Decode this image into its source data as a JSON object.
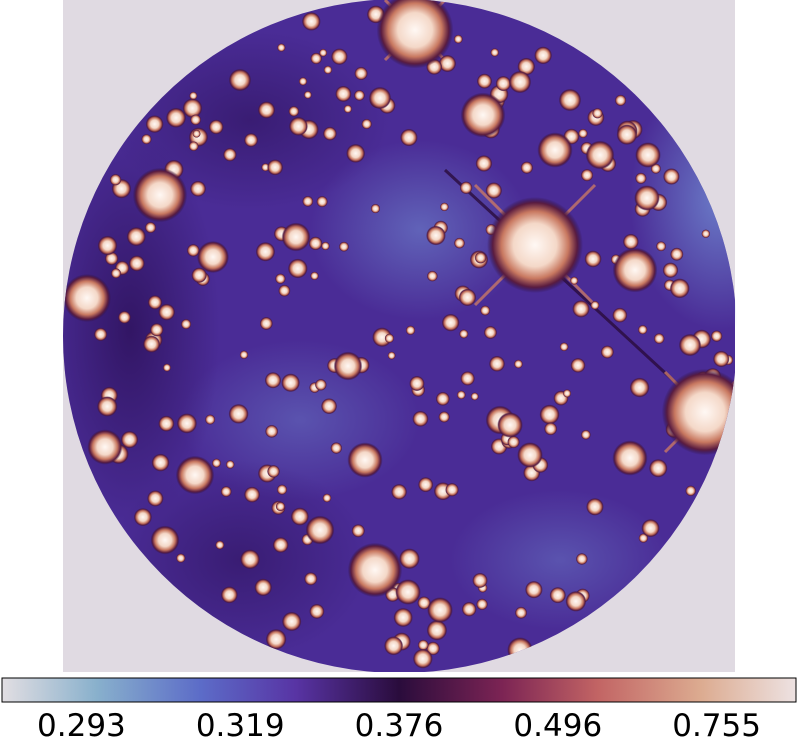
{
  "colorbar": {
    "scale": "equalized",
    "ticks": [
      0.293,
      0.319,
      0.376,
      0.496,
      0.755
    ]
  }
}
